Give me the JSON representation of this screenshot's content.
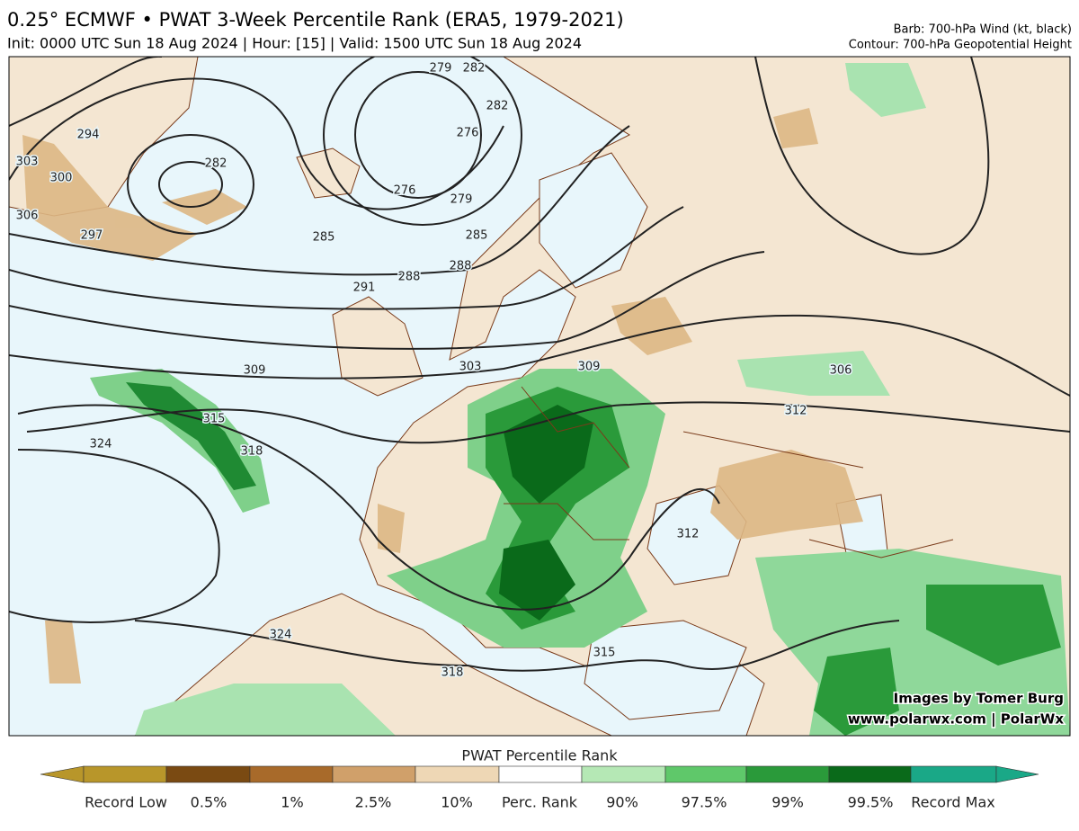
{
  "header": {
    "title": "0.25° ECMWF • PWAT 3-Week Percentile Rank (ERA5, 1979-2021)",
    "subtitle": "Init: 0000 UTC Sun 18 Aug 2024 | Hour: [15] | Valid: 1500 UTC Sun 18 Aug 2024",
    "barb_note": "Barb: 700-hPa Wind (kt, black)",
    "contour_note": "Contour: 700-hPa Geopotential Height"
  },
  "map": {
    "contour_labels": [
      "303",
      "300",
      "306",
      "294",
      "297",
      "282",
      "279",
      "282",
      "276",
      "282",
      "276",
      "279",
      "285",
      "285",
      "288",
      "288",
      "291",
      "309",
      "303",
      "309",
      "306",
      "312",
      "315",
      "318",
      "324",
      "312",
      "324",
      "318",
      "315"
    ],
    "credits": [
      "Images by Tomer Burg",
      "www.polarwx.com | PolarWx"
    ]
  },
  "colorbar": {
    "title": "PWAT Percentile Rank",
    "labels": [
      "Record Low",
      "0.5%",
      "1%",
      "2.5%",
      "10%",
      "Perc. Rank",
      "90%",
      "97.5%",
      "99%",
      "99.5%",
      "Record Max"
    ]
  }
}
